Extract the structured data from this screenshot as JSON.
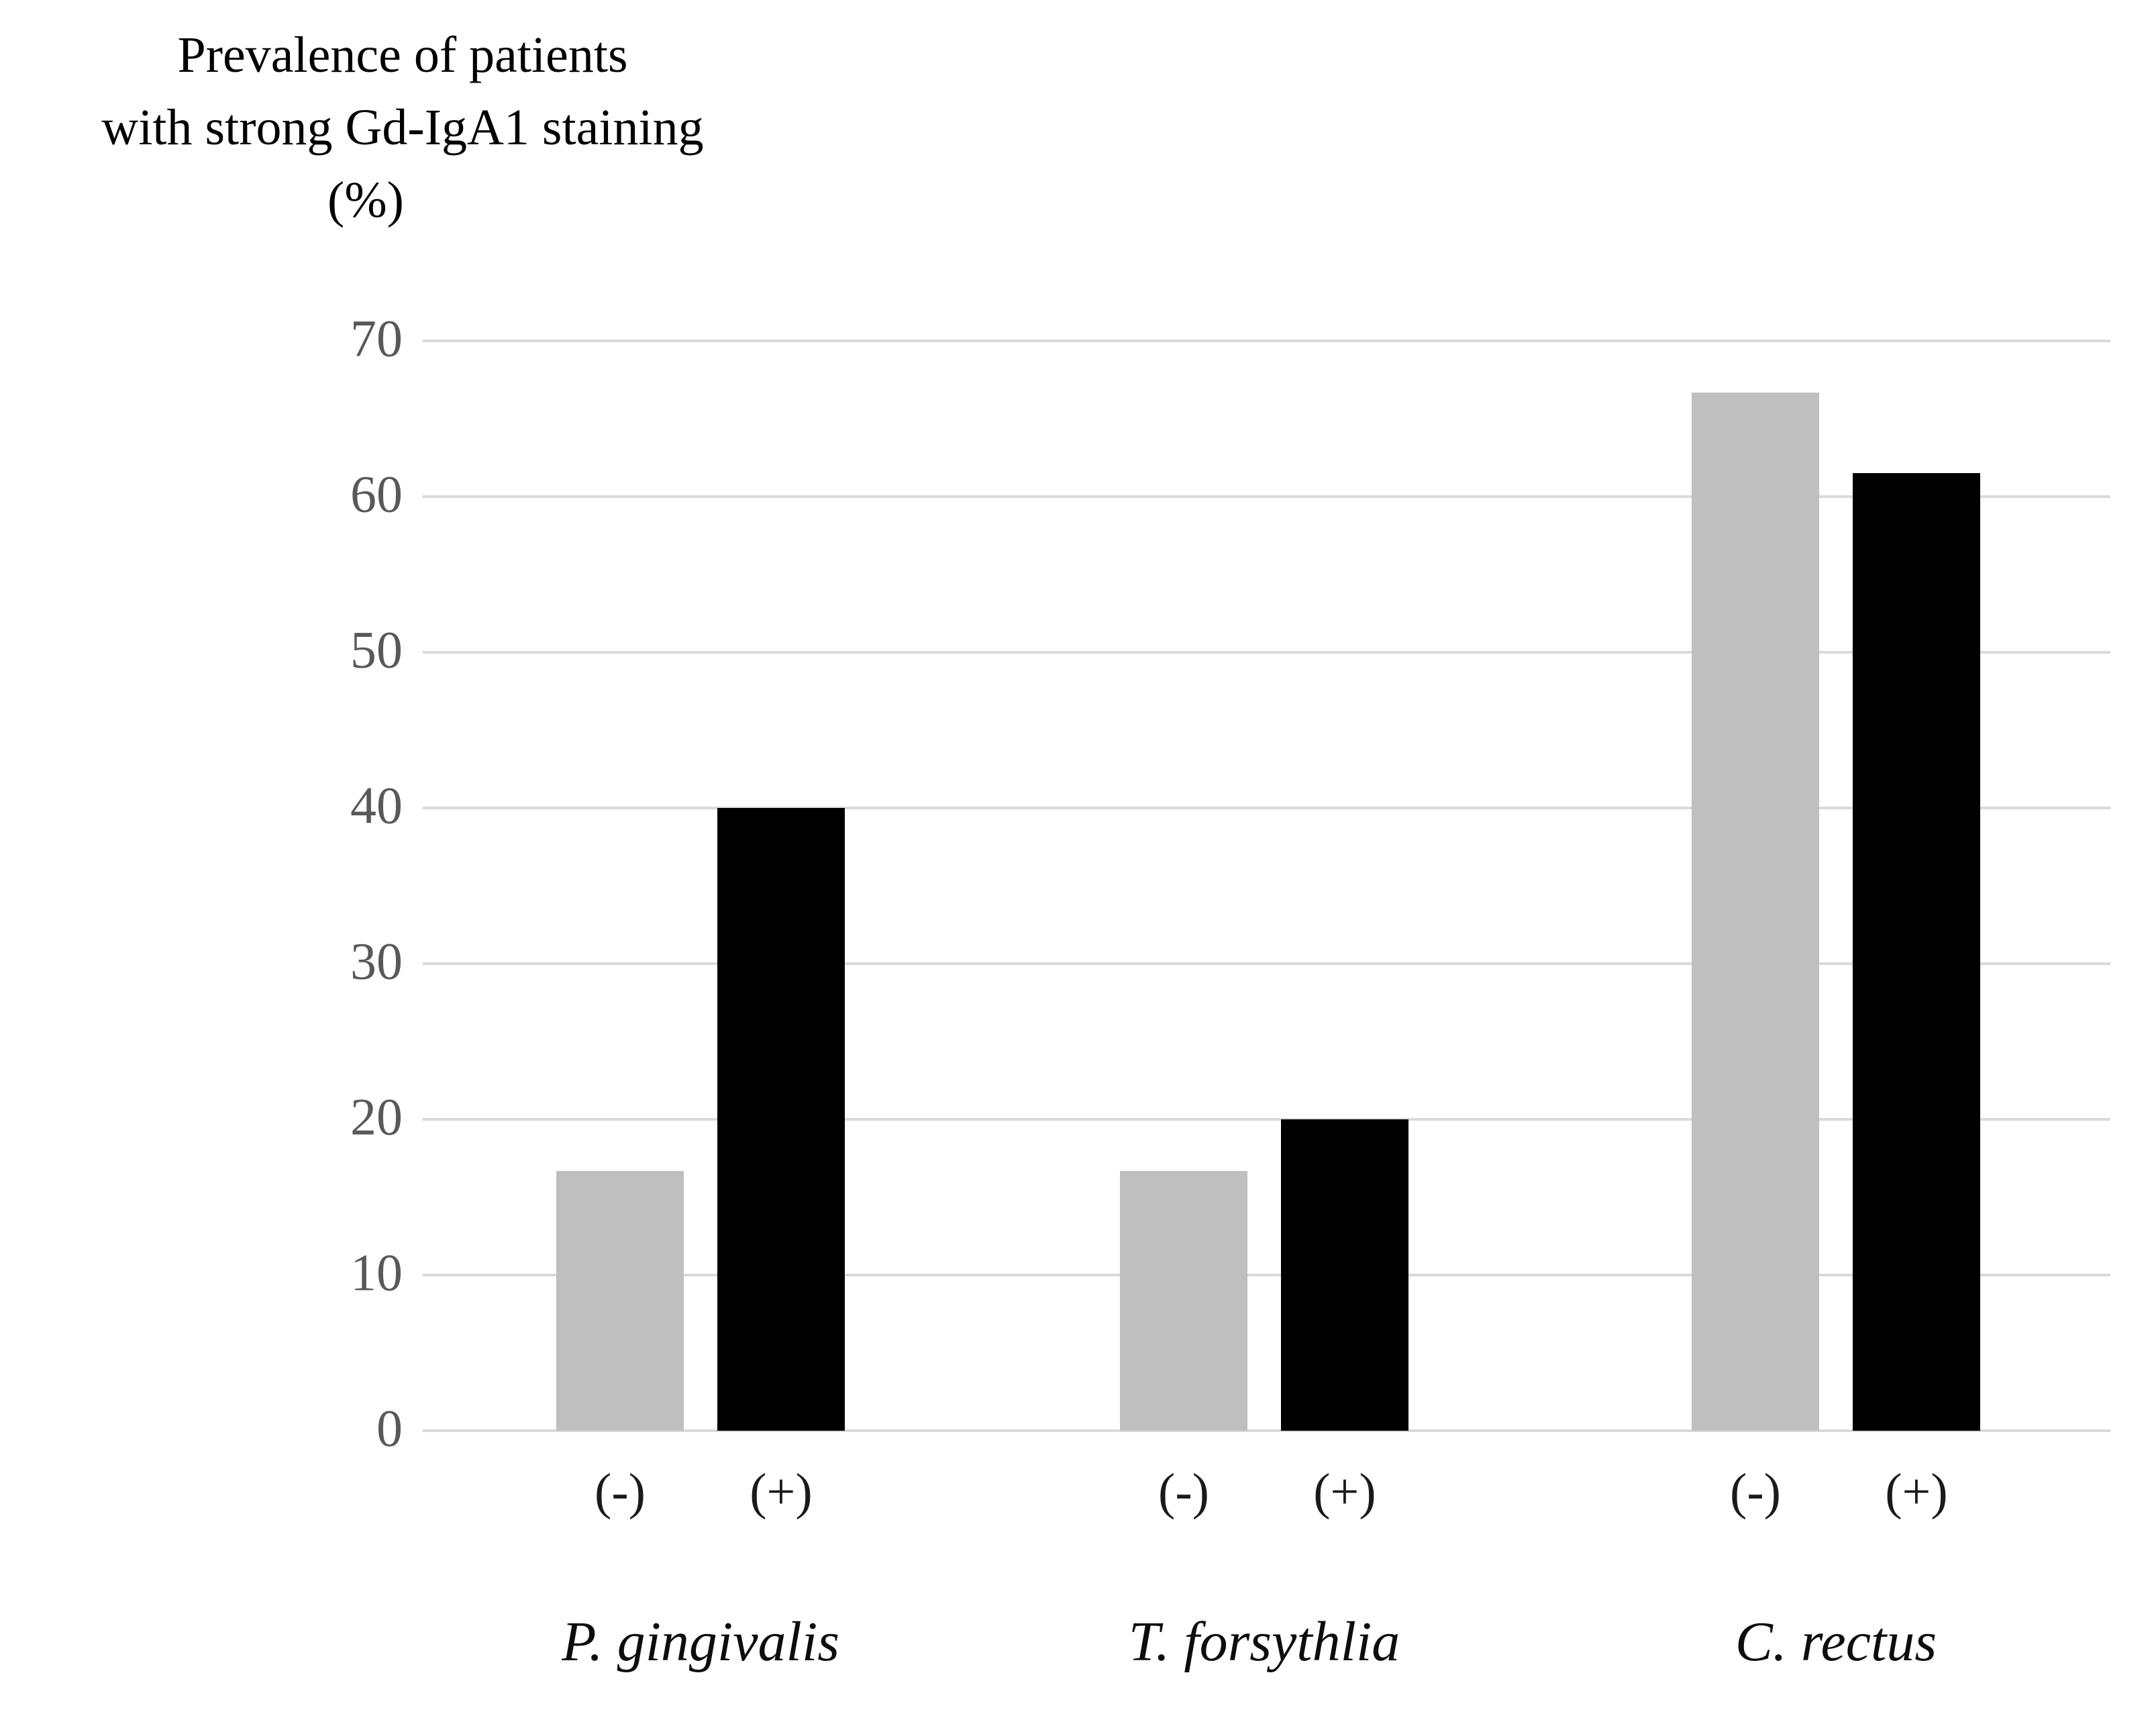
{
  "title": {
    "line1": "Prevalence of patients",
    "line2": "with strong Gd-IgA1 staining",
    "line3": "(%)"
  },
  "chart_data": {
    "type": "bar",
    "title": "Prevalence of patients with strong Gd-IgA1 staining (%)",
    "ylabel": "Prevalence of patients with strong Gd-IgA1 staining (%)",
    "xlabel": "",
    "ylim": [
      0,
      70
    ],
    "yticks": [
      0,
      10,
      20,
      30,
      40,
      50,
      60,
      70
    ],
    "grid": true,
    "legend_position": "none",
    "categories": [
      "P. gingivalis",
      "T. forsythlia",
      "C. rectus"
    ],
    "bar_tick_labels": [
      "(-)",
      "(+)"
    ],
    "series": [
      {
        "name": "(-)",
        "color": "#bfbfbf",
        "values": [
          16.7,
          16.7,
          66.7
        ]
      },
      {
        "name": "(+)",
        "color": "#000000",
        "values": [
          40,
          20,
          61.5
        ]
      }
    ]
  },
  "colors": {
    "background": "#ffffff",
    "gridline": "#d9d9d9",
    "ytick_text": "#595959",
    "xtick_text": "#1a1a1a",
    "title_text": "#000000",
    "negative_bar": "#bfbfbf",
    "positive_bar": "#000000"
  }
}
